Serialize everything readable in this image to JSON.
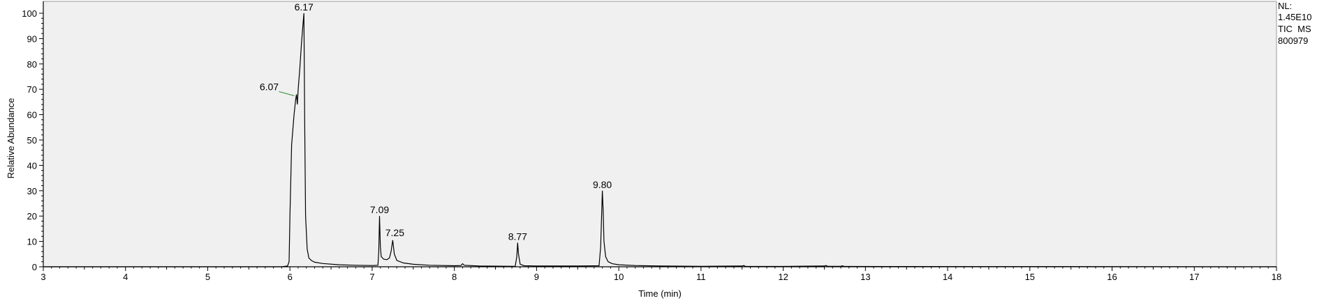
{
  "chart_data": {
    "type": "line",
    "title": "",
    "xlabel": "Time (min)",
    "ylabel": "Relative Abundance",
    "xlim": [
      3,
      18
    ],
    "ylim": [
      0,
      100
    ],
    "x_ticks": [
      3,
      4,
      5,
      6,
      7,
      8,
      9,
      10,
      11,
      12,
      13,
      14,
      15,
      16,
      17,
      18
    ],
    "y_ticks": [
      0,
      10,
      20,
      30,
      40,
      50,
      60,
      70,
      80,
      90,
      100
    ],
    "grid": false,
    "colors": {
      "trace": "#000000",
      "plot_bg": "#f0f0f0",
      "annotation_line": "#2e8b2e"
    },
    "info": {
      "nl_label": "NL:",
      "nl_value": "1.45E10",
      "trace_type": "TIC  MS",
      "sample": "800979"
    },
    "series": [
      {
        "points": [
          [
            3.0,
            0
          ],
          [
            5.9,
            0
          ],
          [
            5.97,
            0.3
          ],
          [
            5.99,
            2
          ],
          [
            6.0,
            20
          ],
          [
            6.02,
            48
          ],
          [
            6.05,
            60
          ],
          [
            6.07,
            66
          ],
          [
            6.08,
            68
          ],
          [
            6.09,
            64
          ],
          [
            6.1,
            70
          ],
          [
            6.12,
            78
          ],
          [
            6.14,
            88
          ],
          [
            6.16,
            96
          ],
          [
            6.17,
            100
          ],
          [
            6.18,
            55
          ],
          [
            6.19,
            20
          ],
          [
            6.21,
            7
          ],
          [
            6.23,
            3.5
          ],
          [
            6.26,
            2.5
          ],
          [
            6.3,
            1.8
          ],
          [
            6.4,
            1.3
          ],
          [
            6.6,
            0.8
          ],
          [
            6.8,
            0.6
          ],
          [
            7.0,
            0.5
          ],
          [
            7.07,
            0.6
          ],
          [
            7.08,
            6
          ],
          [
            7.09,
            20
          ],
          [
            7.1,
            8
          ],
          [
            7.11,
            4
          ],
          [
            7.14,
            3
          ],
          [
            7.18,
            2.8
          ],
          [
            7.21,
            3.5
          ],
          [
            7.23,
            6
          ],
          [
            7.25,
            10.5
          ],
          [
            7.27,
            5
          ],
          [
            7.3,
            2.5
          ],
          [
            7.38,
            1.5
          ],
          [
            7.5,
            1
          ],
          [
            7.7,
            0.6
          ],
          [
            8.0,
            0.4
          ],
          [
            8.08,
            0.5
          ],
          [
            8.1,
            1.2
          ],
          [
            8.12,
            0.6
          ],
          [
            8.3,
            0.3
          ],
          [
            8.74,
            0.2
          ],
          [
            8.76,
            4
          ],
          [
            8.77,
            9.5
          ],
          [
            8.78,
            5
          ],
          [
            8.8,
            1
          ],
          [
            8.85,
            0.4
          ],
          [
            9.0,
            0.3
          ],
          [
            9.5,
            0.3
          ],
          [
            9.76,
            0.4
          ],
          [
            9.78,
            8
          ],
          [
            9.8,
            30
          ],
          [
            9.81,
            22
          ],
          [
            9.82,
            10
          ],
          [
            9.84,
            4
          ],
          [
            9.87,
            2
          ],
          [
            9.92,
            1.2
          ],
          [
            10.0,
            0.8
          ],
          [
            10.2,
            0.5
          ],
          [
            10.5,
            0.3
          ],
          [
            11.0,
            0.2
          ],
          [
            11.5,
            0.3
          ],
          [
            11.52,
            0.5
          ],
          [
            11.54,
            0.2
          ],
          [
            12.0,
            0.15
          ],
          [
            12.5,
            0.3
          ],
          [
            12.52,
            0.5
          ],
          [
            12.54,
            0.2
          ],
          [
            12.7,
            0.2
          ],
          [
            12.72,
            0.4
          ],
          [
            12.74,
            0.15
          ],
          [
            13.5,
            0.1
          ],
          [
            18.0,
            0
          ]
        ]
      }
    ],
    "peak_labels": [
      {
        "x": 6.17,
        "y": 100,
        "text": "6.17"
      },
      {
        "x": 6.07,
        "y": 68,
        "text": "6.07"
      },
      {
        "x": 7.09,
        "y": 20,
        "text": "7.09"
      },
      {
        "x": 7.25,
        "y": 10.5,
        "text": "7.25"
      },
      {
        "x": 8.77,
        "y": 9.5,
        "text": "8.77"
      },
      {
        "x": 9.8,
        "y": 30,
        "text": "9.80"
      }
    ]
  }
}
